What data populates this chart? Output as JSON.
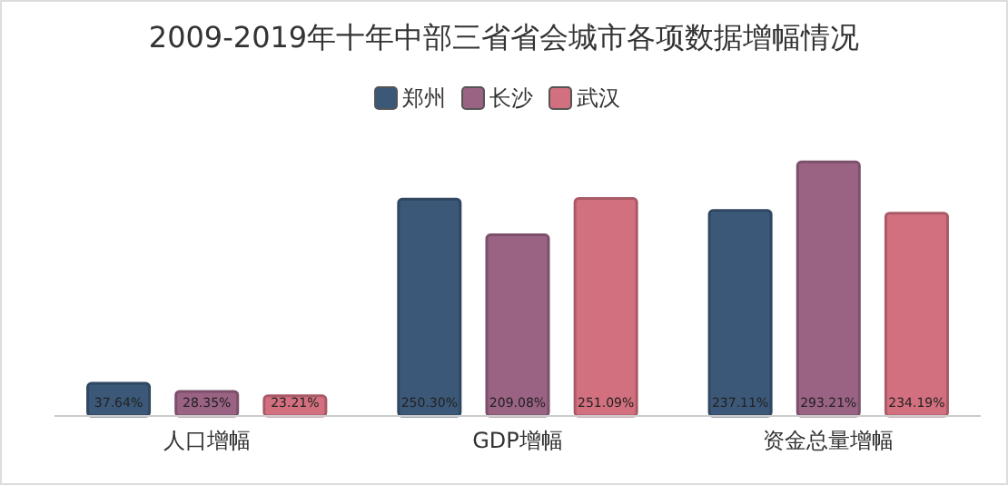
{
  "chart_data": {
    "type": "bar",
    "title": "2009-2019年十年中部三省省会城市各项数据增幅情况",
    "categories": [
      "人口增幅",
      "GDP增幅",
      "资金总量增幅"
    ],
    "series": [
      {
        "name": "郑州",
        "color": "#3b5878",
        "values": [
          37.64,
          250.3,
          237.11
        ],
        "value_labels": [
          "37.64%",
          "250.30%",
          "237.11%"
        ]
      },
      {
        "name": "长沙",
        "color": "#9a6384",
        "values": [
          28.35,
          209.08,
          293.21
        ],
        "value_labels": [
          "28.35%",
          "209.08%",
          "293.21%"
        ]
      },
      {
        "name": "武汉",
        "color": "#d3707f",
        "values": [
          23.21,
          251.09,
          234.19
        ],
        "value_labels": [
          "23.21%",
          "251.09%",
          "234.19%"
        ]
      }
    ],
    "legend": "top",
    "grid": false
  }
}
